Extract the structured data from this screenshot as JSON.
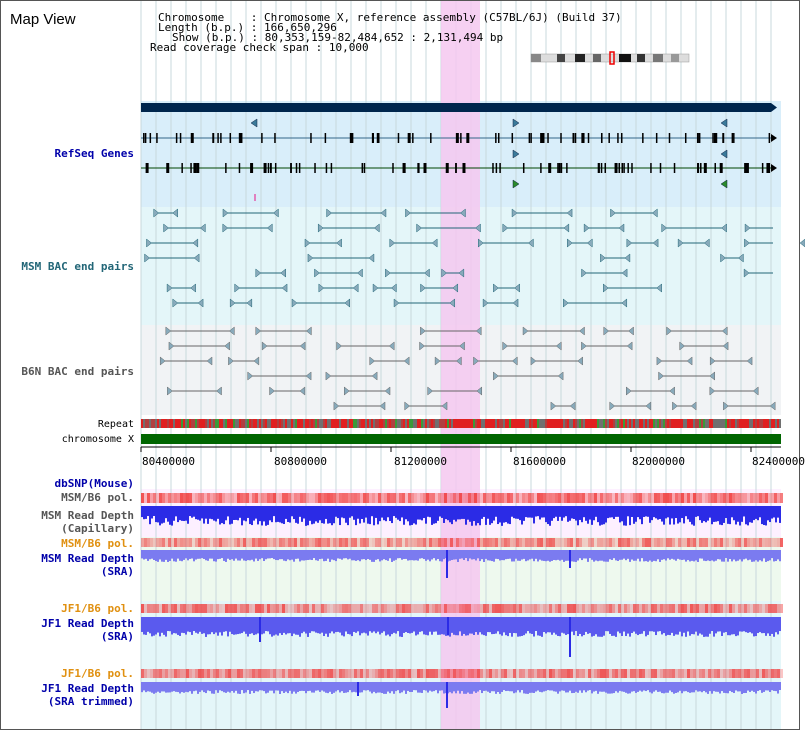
{
  "title": "Map View",
  "header": {
    "chromosome_label": "Chromosome",
    "chromosome_value": "Chromosome X, reference assembly (C57BL/6J) (Build 37)",
    "length_label": "Length (b.p.)",
    "length_value": "166,650,296",
    "show_label": "Show (b.p.)",
    "show_value": "80,353,159-82,484,652 : 2,131,494 bp",
    "coverage_label": "Read coverage check span",
    "coverage_value": "10,000"
  },
  "tracks": {
    "refseq": "RefSeq Genes",
    "msm_bac": "MSM BAC end pairs",
    "b6n_bac": "B6N BAC end pairs",
    "repeat": "Repeat",
    "chromosome": "chromosome X",
    "dbsnp": "dbSNP(Mouse)",
    "msm_pol_1": "MSM/B6 pol.",
    "msm_depth_cap_1": "MSM Read Depth",
    "msm_depth_cap_2": "(Capillary)",
    "msm_pol_2": "MSM/B6 pol.",
    "msm_depth_sra_1": "MSM Read Depth",
    "msm_depth_sra_2": "(SRA)",
    "jf1_pol_1": "JF1/B6 pol.",
    "jf1_depth_sra_1": "JF1 Read Depth",
    "jf1_depth_sra_2": "(SRA)",
    "jf1_pol_2": "JF1/B6 pol.",
    "jf1_depth_trim_1": "JF1 Read Depth",
    "jf1_depth_trim_2": "(SRA trimmed)"
  },
  "axis": {
    "ticks": [
      "80400000",
      "80800000",
      "81200000",
      "81600000",
      "82000000",
      "82400000"
    ]
  },
  "colors": {
    "chromosome_bar": "#006600",
    "gene_bar": "#00264d",
    "highlight": "#f5c8f0",
    "refseq_bg": "#d9eefa",
    "msm_bac_bg": "#e4f6f9",
    "b6n_bac_bg": "#f1f3f5",
    "depth_blue": "#2b2be6",
    "depth_light": "#7b7bf0",
    "pol_red": "#f03a3a",
    "label_blue": "#0000aa",
    "label_orange": "#e09010",
    "label_gray": "#555555",
    "label_teal": "#226677"
  }
}
